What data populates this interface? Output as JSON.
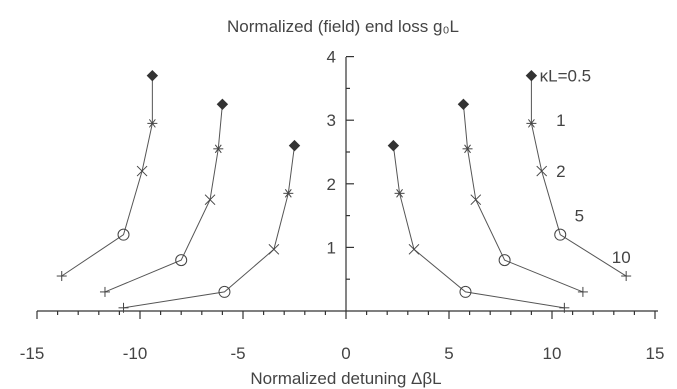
{
  "chart_data": {
    "type": "scatter",
    "title": "Normalized (field) end loss g₀L",
    "xlabel": "Normalized detuning ΔβL",
    "ylabel": "",
    "xlim": [
      -15,
      15
    ],
    "ylim": [
      0,
      4
    ],
    "x_ticks": [
      -15,
      -10,
      -5,
      0,
      5,
      10,
      15
    ],
    "y_ticks": [
      1,
      2,
      3,
      4
    ],
    "grid": false,
    "legend": "none",
    "marker_legend": [
      "diamond",
      "star",
      "x",
      "circle",
      "plus"
    ],
    "series": [
      {
        "name": "κL=0.5",
        "label_at": [
          9.4,
          3.7
        ],
        "points": [
          [
            -9.4,
            3.7
          ],
          [
            -9.4,
            2.95
          ],
          [
            -9.9,
            2.2
          ],
          [
            -10.8,
            1.2
          ],
          [
            -13.8,
            0.55
          ],
          [
            9.0,
            3.7
          ],
          [
            9.0,
            2.95
          ],
          [
            9.5,
            2.2
          ],
          [
            10.4,
            1.2
          ],
          [
            13.6,
            0.55
          ]
        ]
      },
      {
        "name": "1",
        "label_at": [
          10.2,
          3.0
        ],
        "points": [
          [
            -6.0,
            3.25
          ],
          [
            -6.2,
            2.55
          ],
          [
            -6.6,
            1.75
          ],
          [
            -8.0,
            0.8
          ],
          [
            -11.7,
            0.3
          ],
          [
            5.7,
            3.25
          ],
          [
            5.9,
            2.55
          ],
          [
            6.3,
            1.75
          ],
          [
            7.7,
            0.8
          ],
          [
            11.5,
            0.3
          ]
        ]
      },
      {
        "name": "2",
        "label_at": [
          10.2,
          2.2
        ],
        "points": [
          [
            -2.5,
            2.6
          ],
          [
            -2.8,
            1.85
          ],
          [
            -3.5,
            0.97
          ],
          [
            -5.9,
            0.3
          ],
          [
            -10.8,
            0.05
          ],
          [
            2.3,
            2.6
          ],
          [
            2.6,
            1.85
          ],
          [
            3.3,
            0.97
          ],
          [
            5.8,
            0.3
          ],
          [
            10.6,
            0.05
          ]
        ]
      },
      {
        "name": "5",
        "label_at": [
          11.1,
          1.5
        ]
      },
      {
        "name": "10",
        "label_at": [
          12.9,
          0.85
        ]
      }
    ]
  }
}
